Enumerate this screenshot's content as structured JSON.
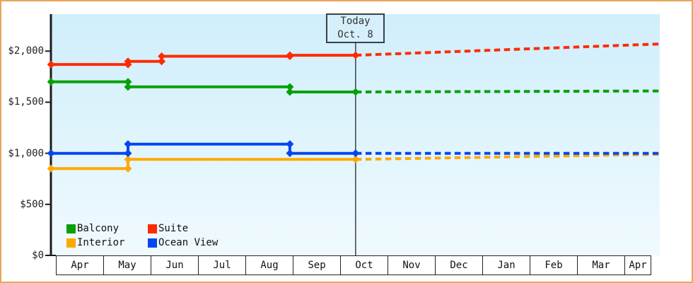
{
  "chart_data": {
    "type": "line",
    "title": "",
    "x_axis": {
      "months": [
        "Apr",
        "May",
        "Jun",
        "Jul",
        "Aug",
        "Sep",
        "Oct",
        "Nov",
        "Dec",
        "Jan",
        "Feb",
        "Mar",
        "Apr"
      ]
    },
    "y_axis": {
      "ticks": [
        {
          "label": "$0",
          "value": 0
        },
        {
          "label": "$500",
          "value": 500
        },
        {
          "label": "$1,000",
          "value": 1000
        },
        {
          "label": "$1,500",
          "value": 1500
        },
        {
          "label": "$2,000",
          "value": 2000
        }
      ],
      "ylim": [
        0,
        2360
      ],
      "grid": "off"
    },
    "today": {
      "label_line1": "Today",
      "label_line2": "Oct. 8",
      "m": 6,
      "d": 8
    },
    "series": [
      {
        "id": "interior",
        "name": "Interior",
        "color": "#ffa800",
        "solid": [
          {
            "m": 0,
            "d": -2,
            "v": 850
          },
          {
            "m": 1,
            "d": 16,
            "v": 850
          },
          {
            "m": 1,
            "d": 16,
            "v": 940
          },
          {
            "m": 6,
            "d": 8,
            "v": 940
          }
        ],
        "forecast": [
          {
            "m": 6,
            "d": 8,
            "v": 940
          },
          {
            "m": 12,
            "d": 17,
            "v": 990
          }
        ]
      },
      {
        "id": "ocean-view",
        "name": "Ocean View",
        "color": "#0546f0",
        "solid": [
          {
            "m": 0,
            "d": -2,
            "v": 1000
          },
          {
            "m": 1,
            "d": 16,
            "v": 1000
          },
          {
            "m": 1,
            "d": 16,
            "v": 1090
          },
          {
            "m": 4,
            "d": 27,
            "v": 1090
          },
          {
            "m": 4,
            "d": 27,
            "v": 1000
          },
          {
            "m": 6,
            "d": 8,
            "v": 1000
          }
        ],
        "forecast": [
          {
            "m": 6,
            "d": 8,
            "v": 1000
          },
          {
            "m": 12,
            "d": 17,
            "v": 1000
          }
        ]
      },
      {
        "id": "balcony",
        "name": "Balcony",
        "color": "#08a008",
        "solid": [
          {
            "m": 0,
            "d": -2,
            "v": 1700
          },
          {
            "m": 1,
            "d": 16,
            "v": 1700
          },
          {
            "m": 1,
            "d": 16,
            "v": 1650
          },
          {
            "m": 4,
            "d": 27,
            "v": 1650
          },
          {
            "m": 4,
            "d": 27,
            "v": 1600
          },
          {
            "m": 6,
            "d": 8,
            "v": 1600
          }
        ],
        "forecast": [
          {
            "m": 6,
            "d": 8,
            "v": 1600
          },
          {
            "m": 12,
            "d": 17,
            "v": 1610
          }
        ]
      },
      {
        "id": "suite",
        "name": "Suite",
        "color": "#ff2b00",
        "solid": [
          {
            "m": 0,
            "d": -2,
            "v": 1870
          },
          {
            "m": 1,
            "d": 16,
            "v": 1870
          },
          {
            "m": 1,
            "d": 16,
            "v": 1900
          },
          {
            "m": 2,
            "d": 7,
            "v": 1900
          },
          {
            "m": 2,
            "d": 7,
            "v": 1950
          },
          {
            "m": 4,
            "d": 27,
            "v": 1950
          },
          {
            "m": 4,
            "d": 27,
            "v": 1960
          },
          {
            "m": 6,
            "d": 8,
            "v": 1960
          }
        ],
        "forecast": [
          {
            "m": 6,
            "d": 8,
            "v": 1960
          },
          {
            "m": 12,
            "d": 17,
            "v": 2070
          }
        ]
      }
    ],
    "legend": {
      "position": "bottom-left",
      "rows": [
        [
          "balcony",
          "suite"
        ],
        [
          "interior",
          "ocean-view"
        ]
      ]
    },
    "colors": {
      "frame_border": "#eaa558",
      "plot_bg_top": "#cfeefb",
      "plot_bg_bottom": "#f0fafe",
      "axis": "#1c1c1c",
      "today_line": "#3a4149",
      "today_box_bg": "#d6f0fb",
      "month_box_bg": "#ffffff"
    }
  }
}
